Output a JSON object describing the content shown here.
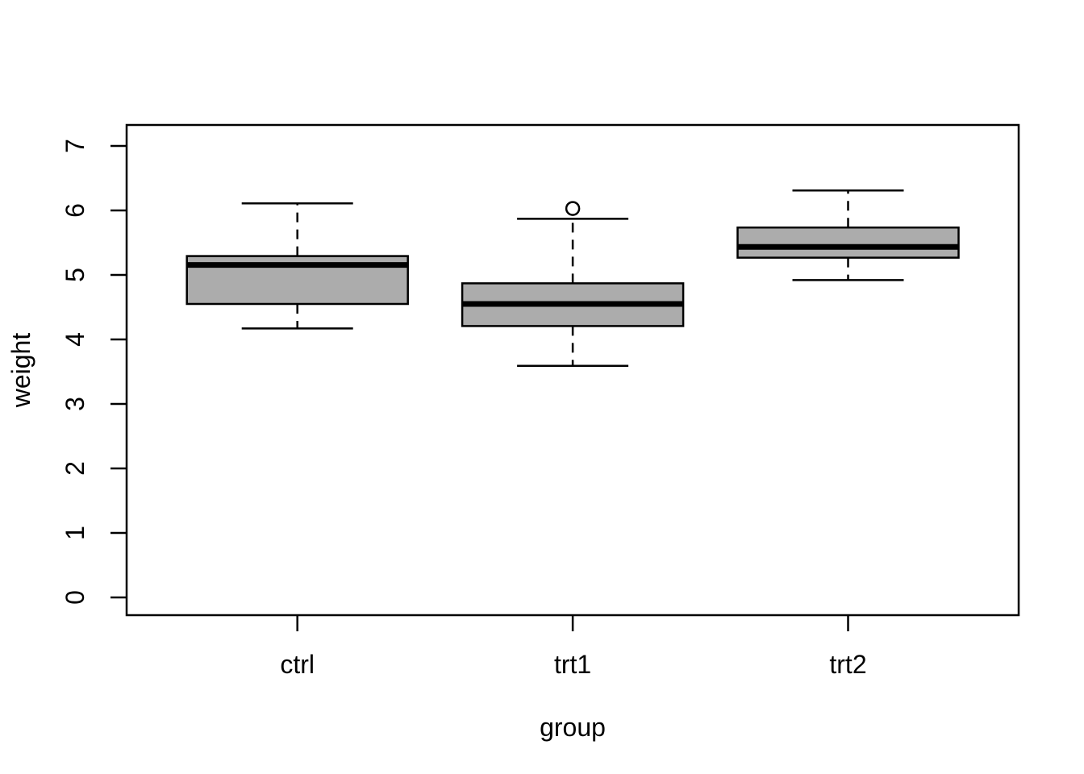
{
  "figure": {
    "background": "#FFFFFF"
  },
  "chart_data": {
    "type": "boxplot",
    "title": "",
    "xlabel": "group",
    "ylabel": "weight",
    "categories": [
      "ctrl",
      "trt1",
      "trt2"
    ],
    "y_ticks": [
      "0",
      "1",
      "2",
      "3",
      "4",
      "5",
      "6",
      "7"
    ],
    "ylim": [
      -0.275,
      7.325
    ],
    "grid": false,
    "legend": "none",
    "series": [
      {
        "name": "ctrl",
        "whisker_low": 4.17,
        "q1": 4.55,
        "median": 5.155,
        "q3": 5.2925,
        "whisker_high": 6.11,
        "outliers": []
      },
      {
        "name": "trt1",
        "whisker_low": 3.59,
        "q1": 4.2075,
        "median": 4.55,
        "q3": 4.87,
        "whisker_high": 5.87,
        "outliers": [
          6.03
        ]
      },
      {
        "name": "trt2",
        "whisker_low": 4.92,
        "q1": 5.2675,
        "median": 5.435,
        "q3": 5.735,
        "whisker_high": 6.31,
        "outliers": []
      }
    ],
    "style": {
      "box_fill": "#ACACAC",
      "line_color": "#000000",
      "outlier_fill": "none"
    }
  }
}
